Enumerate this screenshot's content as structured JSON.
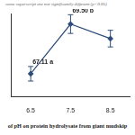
{
  "chart_data": {
    "type": "line",
    "caption": "of pH on protein hydrolysate from giant mudskip",
    "note": "same superscript are not significantly different (p<0.05)",
    "categories": [
      "6.5",
      "7.5",
      "8.5"
    ],
    "values": [
      67.11,
      69.5,
      68.8
    ],
    "errors": [
      0.35,
      0.45,
      0.4
    ],
    "value_labels": [
      "67.11 a",
      "69.50 b",
      null
    ],
    "data_labels": true,
    "color": "#2e4d7b",
    "marker": "diamond",
    "ylim": [
      66,
      70
    ],
    "yticks": [
      66,
      67,
      68,
      69,
      70
    ],
    "grid": false,
    "tick_labels": "x"
  }
}
